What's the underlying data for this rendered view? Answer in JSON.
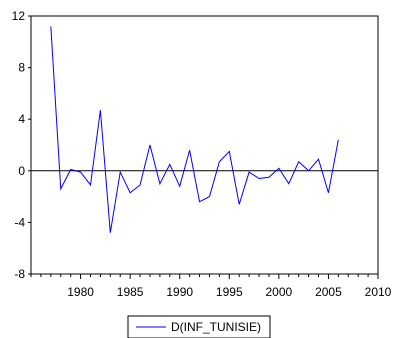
{
  "chart_data": {
    "type": "line",
    "title": "",
    "xlabel": "",
    "ylabel": "",
    "xlim": [
      1975,
      2010
    ],
    "ylim": [
      -8,
      12
    ],
    "x_ticks": [
      1980,
      1985,
      1990,
      1995,
      2000,
      2005,
      2010
    ],
    "y_ticks": [
      -8,
      -4,
      0,
      4,
      8,
      12
    ],
    "x_tick_labels": [
      "1980",
      "1985",
      "1990",
      "1995",
      "2000",
      "2005",
      "2010"
    ],
    "y_tick_labels": [
      "-8",
      "-4",
      "0",
      "4",
      "8",
      "12"
    ],
    "zero_line": true,
    "grid": false,
    "legend_position": "bottom-center",
    "series": [
      {
        "name": "D(INF_TUNISIE)",
        "color": "#0000ff",
        "x": [
          1977,
          1978,
          1979,
          1980,
          1981,
          1982,
          1983,
          1984,
          1985,
          1986,
          1987,
          1988,
          1989,
          1990,
          1991,
          1992,
          1993,
          1994,
          1995,
          1996,
          1997,
          1998,
          1999,
          2000,
          2001,
          2002,
          2003,
          2004,
          2005,
          2006
        ],
        "values": [
          11.2,
          -1.4,
          0.1,
          -0.1,
          -1.1,
          4.7,
          -4.8,
          -0.1,
          -1.7,
          -1.1,
          2.0,
          -1.0,
          0.5,
          -1.2,
          1.6,
          -2.4,
          -2.0,
          0.7,
          1.5,
          -2.6,
          -0.1,
          -0.6,
          -0.5,
          0.2,
          -1.0,
          0.7,
          0.0,
          0.9,
          -1.7,
          2.4
        ]
      }
    ]
  }
}
